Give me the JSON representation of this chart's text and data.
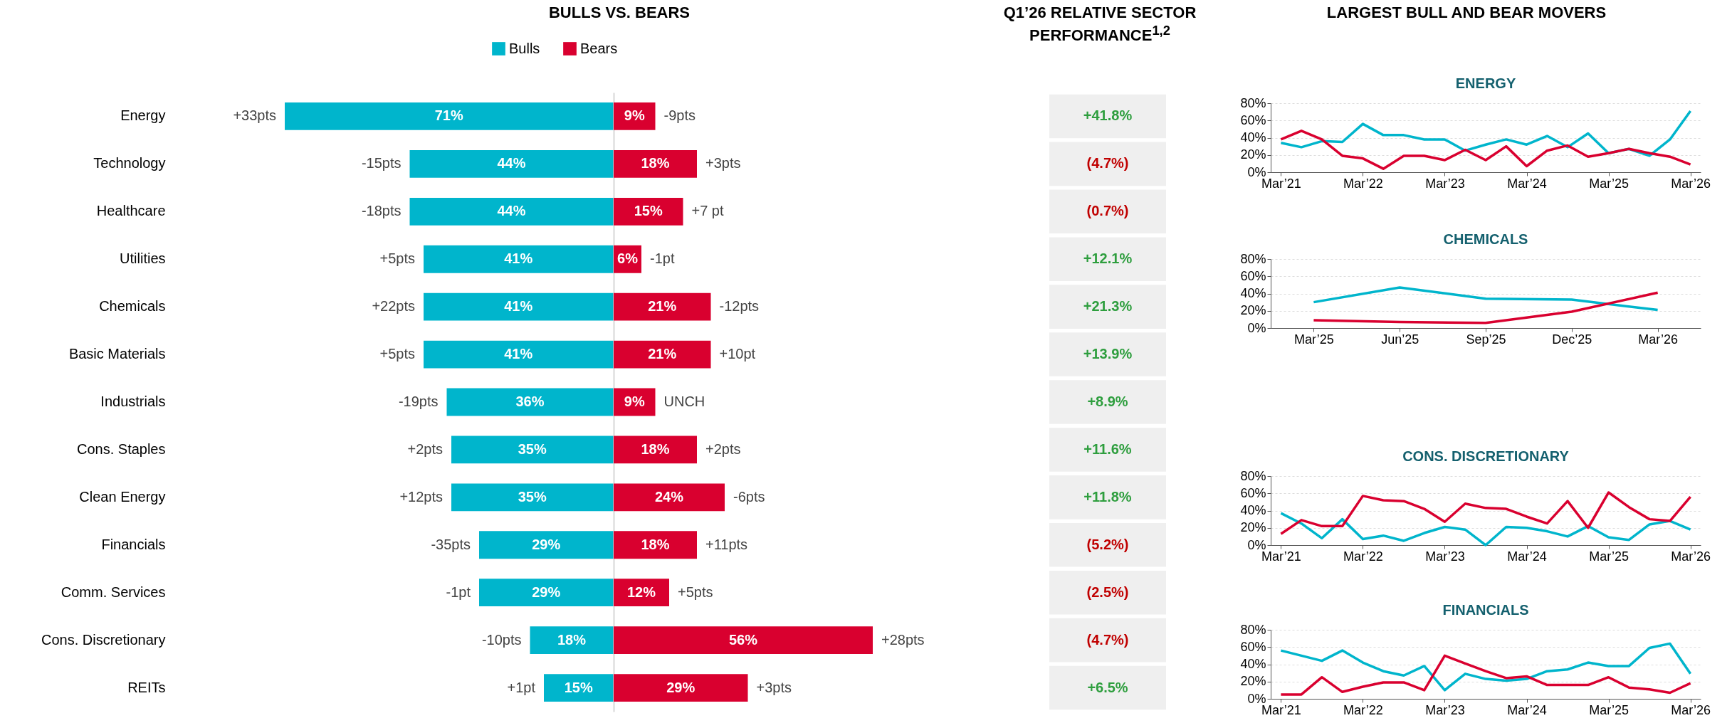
{
  "chart_data": [
    {
      "type": "bar",
      "orientation": "horizontal",
      "title": "BULLS VS. BEARS",
      "legend": "top",
      "tick_labels": "y",
      "xlim": [
        71,
        0
      ],
      "categories": [
        "Energy",
        "Technology",
        "Healthcare",
        "Utilities",
        "Chemicals",
        "Basic Materials",
        "Industrials",
        "Cons. Staples",
        "Clean Energy",
        "Financials",
        "Comm. Services",
        "Cons. Discretionary",
        "REITs"
      ],
      "series": [
        {
          "name": "Bulls",
          "color": "#00b5cc",
          "values": [
            71,
            44,
            44,
            41,
            41,
            41,
            36,
            35,
            35,
            29,
            29,
            18,
            15
          ],
          "value_labels": [
            "71%",
            "44%",
            "44%",
            "41%",
            "41%",
            "41%",
            "36%",
            "35%",
            "35%",
            "29%",
            "29%",
            "18%",
            "15%"
          ]
        }
      ],
      "annotations": [
        {
          "text": "+33pts",
          "x": 71,
          "y": "Energy"
        },
        {
          "text": "-15pts",
          "x": 44,
          "y": "Technology"
        },
        {
          "text": "-18pts",
          "x": 44,
          "y": "Healthcare"
        },
        {
          "text": "+5pts",
          "x": 41,
          "y": "Utilities"
        },
        {
          "text": "+22pts",
          "x": 41,
          "y": "Chemicals"
        },
        {
          "text": "+5pts",
          "x": 41,
          "y": "Basic Materials"
        },
        {
          "text": "-19pts",
          "x": 36,
          "y": "Industrials"
        },
        {
          "text": "+2pts",
          "x": 35,
          "y": "Cons. Staples"
        },
        {
          "text": "+12pts",
          "x": 35,
          "y": "Clean Energy"
        },
        {
          "text": "-35pts",
          "x": 29,
          "y": "Financials"
        },
        {
          "text": "-1pt",
          "x": 29,
          "y": "Comm. Services"
        },
        {
          "text": "-10pts",
          "x": 18,
          "y": "Cons. Discretionary"
        },
        {
          "text": "+1pt",
          "x": 15,
          "y": "REITs"
        }
      ]
    },
    {
      "type": "bar",
      "orientation": "horizontal",
      "legend": "top",
      "tick_labels": false,
      "xlim": [
        0,
        56
      ],
      "categories": [
        "Energy",
        "Technology",
        "Healthcare",
        "Utilities",
        "Chemicals",
        "Basic Materials",
        "Industrials",
        "Cons. Staples",
        "Clean Energy",
        "Financials",
        "Comm. Services",
        "Cons. Discretionary",
        "REITs"
      ],
      "series": [
        {
          "name": "Bears",
          "color": "#d9002f",
          "values": [
            9,
            18,
            15,
            6,
            21,
            21,
            9,
            18,
            24,
            18,
            12,
            56,
            29
          ],
          "value_labels": [
            "9%",
            "18%",
            "15%",
            "6%",
            "21%",
            "21%",
            "9%",
            "18%",
            "24%",
            "18%",
            "12%",
            "56%",
            "29%"
          ]
        }
      ],
      "annotations": [
        {
          "text": "-9pts",
          "x": 9,
          "y": "Energy"
        },
        {
          "text": "+3pts",
          "x": 18,
          "y": "Technology"
        },
        {
          "text": "+7 pt",
          "x": 15,
          "y": "Healthcare"
        },
        {
          "text": "-1pt",
          "x": 6,
          "y": "Utilities"
        },
        {
          "text": "-12pts",
          "x": 21,
          "y": "Chemicals"
        },
        {
          "text": "+10pt",
          "x": 21,
          "y": "Basic Materials"
        },
        {
          "text": "UNCH",
          "x": 9,
          "y": "Industrials"
        },
        {
          "text": "+2pts",
          "x": 18,
          "y": "Cons. Staples"
        },
        {
          "text": "-6pts",
          "x": 24,
          "y": "Clean Energy"
        },
        {
          "text": "+11pts",
          "x": 18,
          "y": "Financials"
        },
        {
          "text": "+5pts",
          "x": 12,
          "y": "Comm. Services"
        },
        {
          "text": "+28pts",
          "x": 56,
          "y": "Cons. Discretionary"
        },
        {
          "text": "+3pts",
          "x": 29,
          "y": "REITs"
        }
      ]
    },
    {
      "type": "other",
      "title": "Q1’26 RELATIVE SECTOR PERFORMANCE$^{1,2}$",
      "annotations": [
        "+41.8%",
        "(4.7%)",
        "(0.7%)",
        "+12.1%",
        "+21.3%",
        "+13.9%",
        "+8.9%",
        "+11.6%",
        "+11.8%",
        "(5.2%)",
        "(2.5%)",
        "(4.7%)",
        "+6.5%"
      ],
      "colors": [
        "#2e9e3e",
        "#c00000",
        "#c00000",
        "#2e9e3e",
        "#2e9e3e",
        "#2e9e3e",
        "#2e9e3e",
        "#2e9e3e",
        "#2e9e3e",
        "#c00000",
        "#c00000",
        "#c00000",
        "#2e9e3e"
      ]
    },
    {
      "type": "other",
      "title": "LARGEST BULL AND BEAR MOVERS"
    },
    {
      "type": "line",
      "title": "ENERGY",
      "grid": "y",
      "ylim": [
        0,
        80
      ],
      "yticks": [
        {
          "value": 0,
          "label": "0%"
        },
        {
          "value": 20,
          "label": "20%"
        },
        {
          "value": 40,
          "label": "40%"
        },
        {
          "value": 60,
          "label": "60%"
        },
        {
          "value": 80,
          "label": "80%"
        }
      ],
      "categories": [
        "Mar’21",
        null,
        null,
        null,
        "Mar’22",
        null,
        null,
        null,
        "Mar’23",
        null,
        null,
        null,
        "Mar’24",
        null,
        null,
        null,
        "Mar’25",
        null,
        null,
        null,
        "Mar’26"
      ],
      "series": [
        {
          "color": "#00b5cc",
          "values": [
            34,
            29,
            36,
            35,
            56,
            43,
            43,
            38,
            38,
            25,
            32,
            38,
            32,
            42,
            29,
            45,
            22,
            27,
            19,
            38,
            71
          ]
        },
        {
          "color": "#d9002f",
          "values": [
            38,
            48,
            38,
            19,
            16,
            4,
            19,
            19,
            14,
            26,
            14,
            30,
            7,
            25,
            31,
            18,
            22,
            27,
            22,
            18,
            9
          ]
        }
      ]
    },
    {
      "type": "line",
      "title": "CHEMICALS",
      "grid": "y",
      "ylim": [
        0,
        80
      ],
      "yticks": [
        {
          "value": 0,
          "label": "0%"
        },
        {
          "value": 20,
          "label": "20%"
        },
        {
          "value": 40,
          "label": "40%"
        },
        {
          "value": 60,
          "label": "60%"
        },
        {
          "value": 80,
          "label": "80%"
        }
      ],
      "categories": [
        "Mar’25",
        "Jun’25",
        "Sep’25",
        "Dec’25",
        "Mar’26"
      ],
      "series": [
        {
          "color": "#00b5cc",
          "values": [
            30,
            47,
            34,
            33,
            21
          ]
        },
        {
          "color": "#d9002f",
          "values": [
            9,
            7,
            6,
            19,
            41
          ]
        }
      ]
    },
    {
      "type": "line",
      "title": "CONS. DISCRETIONARY",
      "grid": "y",
      "ylim": [
        0,
        80
      ],
      "yticks": [
        {
          "value": 0,
          "label": "0%"
        },
        {
          "value": 20,
          "label": "20%"
        },
        {
          "value": 40,
          "label": "40%"
        },
        {
          "value": 60,
          "label": "60%"
        },
        {
          "value": 80,
          "label": "80%"
        }
      ],
      "categories": [
        "Mar’21",
        null,
        null,
        null,
        "Mar’22",
        null,
        null,
        null,
        "Mar’23",
        null,
        null,
        null,
        "Mar’24",
        null,
        null,
        null,
        "Mar’25",
        null,
        null,
        null,
        "Mar’26"
      ],
      "series": [
        {
          "color": "#00b5cc",
          "values": [
            37,
            25,
            8,
            30,
            7,
            11,
            5,
            14,
            21,
            18,
            0,
            21,
            20,
            16,
            10,
            22,
            9,
            6,
            24,
            28,
            18
          ]
        },
        {
          "color": "#d9002f",
          "values": [
            13,
            29,
            22,
            22,
            57,
            52,
            51,
            42,
            27,
            48,
            43,
            42,
            33,
            25,
            51,
            20,
            61,
            44,
            30,
            28,
            56
          ]
        }
      ]
    },
    {
      "type": "line",
      "title": "FINANCIALS",
      "grid": "y",
      "ylim": [
        0,
        80
      ],
      "yticks": [
        {
          "value": 0,
          "label": "0%"
        },
        {
          "value": 20,
          "label": "20%"
        },
        {
          "value": 40,
          "label": "40%"
        },
        {
          "value": 60,
          "label": "60%"
        },
        {
          "value": 80,
          "label": "80%"
        }
      ],
      "categories": [
        "Mar’21",
        null,
        null,
        null,
        "Mar’22",
        null,
        null,
        null,
        "Mar’23",
        null,
        null,
        null,
        "Mar’24",
        null,
        null,
        null,
        "Mar’25",
        null,
        null,
        null,
        "Mar’26"
      ],
      "series": [
        {
          "color": "#00b5cc",
          "values": [
            56,
            50,
            44,
            56,
            42,
            32,
            27,
            38,
            10,
            29,
            23,
            21,
            23,
            32,
            34,
            42,
            38,
            38,
            59,
            64,
            29
          ]
        },
        {
          "color": "#d9002f",
          "values": [
            5,
            5,
            25,
            8,
            14,
            19,
            19,
            10,
            50,
            41,
            32,
            24,
            26,
            16,
            16,
            16,
            25,
            13,
            11,
            7,
            18
          ]
        }
      ]
    }
  ]
}
